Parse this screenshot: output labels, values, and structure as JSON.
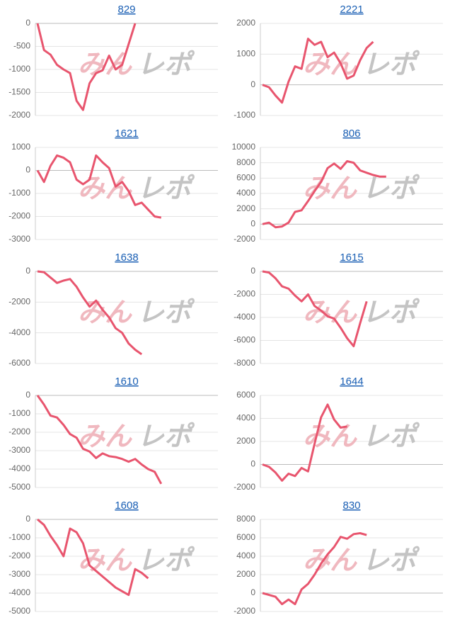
{
  "watermark": [
    "みん",
    "レポ"
  ],
  "chart_data": [
    {
      "type": "line",
      "title": "829",
      "color": "#e8556e",
      "grid": true,
      "ylim": [
        -2000,
        0
      ],
      "yticks": [
        0,
        -500,
        -1000,
        -1500,
        -2000
      ],
      "values": [
        0,
        -580,
        -680,
        -900,
        -1000,
        -1080,
        -1680,
        -1880,
        -1300,
        -1080,
        -1020,
        -700,
        -1000,
        -900,
        -450,
        0
      ]
    },
    {
      "type": "line",
      "title": "2221",
      "color": "#e8556e",
      "grid": true,
      "ylim": [
        -1000,
        2000
      ],
      "yticks": [
        2000,
        1000,
        0,
        -1000
      ],
      "values": [
        0,
        -80,
        -350,
        -580,
        100,
        600,
        520,
        1500,
        1300,
        1400,
        900,
        1050,
        700,
        200,
        300,
        800,
        1200,
        1400
      ]
    },
    {
      "type": "line",
      "title": "1621",
      "color": "#e8556e",
      "grid": true,
      "ylim": [
        -3000,
        1000
      ],
      "yticks": [
        1000,
        0,
        -1000,
        -2000,
        -3000
      ],
      "values": [
        0,
        -500,
        200,
        650,
        550,
        350,
        -400,
        -600,
        -400,
        650,
        350,
        100,
        -700,
        -500,
        -900,
        -1500,
        -1400,
        -1700,
        -2000,
        -2050
      ]
    },
    {
      "type": "line",
      "title": "806",
      "color": "#e8556e",
      "grid": true,
      "ylim": [
        -2000,
        10000
      ],
      "yticks": [
        10000,
        8000,
        6000,
        4000,
        2000,
        0,
        -2000
      ],
      "values": [
        0,
        200,
        -400,
        -300,
        200,
        1600,
        1800,
        3000,
        4300,
        5500,
        7300,
        7900,
        7200,
        8200,
        8000,
        7000,
        6700,
        6400,
        6200,
        6200
      ]
    },
    {
      "type": "line",
      "title": "1638",
      "color": "#e8556e",
      "grid": true,
      "ylim": [
        -6000,
        0
      ],
      "yticks": [
        0,
        -2000,
        -4000,
        -6000
      ],
      "values": [
        0,
        -50,
        -400,
        -750,
        -600,
        -500,
        -1000,
        -1700,
        -2300,
        -1900,
        -2500,
        -3000,
        -3700,
        -4000,
        -4700,
        -5100,
        -5400
      ]
    },
    {
      "type": "line",
      "title": "1615",
      "color": "#e8556e",
      "grid": true,
      "ylim": [
        -8000,
        0
      ],
      "yticks": [
        0,
        -2000,
        -4000,
        -6000,
        -8000
      ],
      "values": [
        0,
        -100,
        -600,
        -1300,
        -1500,
        -2100,
        -2600,
        -2000,
        -3000,
        -3400,
        -3900,
        -4100,
        -4900,
        -5800,
        -6500,
        -4500,
        -2600
      ]
    },
    {
      "type": "line",
      "title": "1610",
      "color": "#e8556e",
      "grid": true,
      "ylim": [
        -5000,
        0
      ],
      "yticks": [
        0,
        -1000,
        -2000,
        -3000,
        -4000,
        -5000
      ],
      "values": [
        0,
        -500,
        -1100,
        -1200,
        -1600,
        -2100,
        -2300,
        -2900,
        -3050,
        -3400,
        -3150,
        -3300,
        -3350,
        -3450,
        -3600,
        -3450,
        -3750,
        -4000,
        -4150,
        -4800
      ]
    },
    {
      "type": "line",
      "title": "1644",
      "color": "#e8556e",
      "grid": true,
      "ylim": [
        -2000,
        6000
      ],
      "yticks": [
        6000,
        4000,
        2000,
        0,
        -2000
      ],
      "values": [
        0,
        -200,
        -700,
        -1400,
        -800,
        -1000,
        -300,
        -600,
        1800,
        4100,
        5200,
        3900,
        3200,
        3300
      ]
    },
    {
      "type": "line",
      "title": "1608",
      "color": "#e8556e",
      "grid": true,
      "ylim": [
        -5000,
        0
      ],
      "yticks": [
        0,
        -1000,
        -2000,
        -3000,
        -4000,
        -5000
      ],
      "values": [
        0,
        -300,
        -900,
        -1400,
        -2000,
        -500,
        -700,
        -1300,
        -2500,
        -2800,
        -3100,
        -3400,
        -3700,
        -3900,
        -4100,
        -2700,
        -2900,
        -3200
      ]
    },
    {
      "type": "line",
      "title": "830",
      "color": "#e8556e",
      "grid": true,
      "ylim": [
        -2000,
        8000
      ],
      "yticks": [
        8000,
        6000,
        4000,
        2000,
        0,
        -2000
      ],
      "values": [
        0,
        -200,
        -400,
        -1200,
        -700,
        -1200,
        400,
        1000,
        2000,
        3200,
        4200,
        5000,
        6100,
        5900,
        6400,
        6500,
        6300
      ]
    }
  ]
}
